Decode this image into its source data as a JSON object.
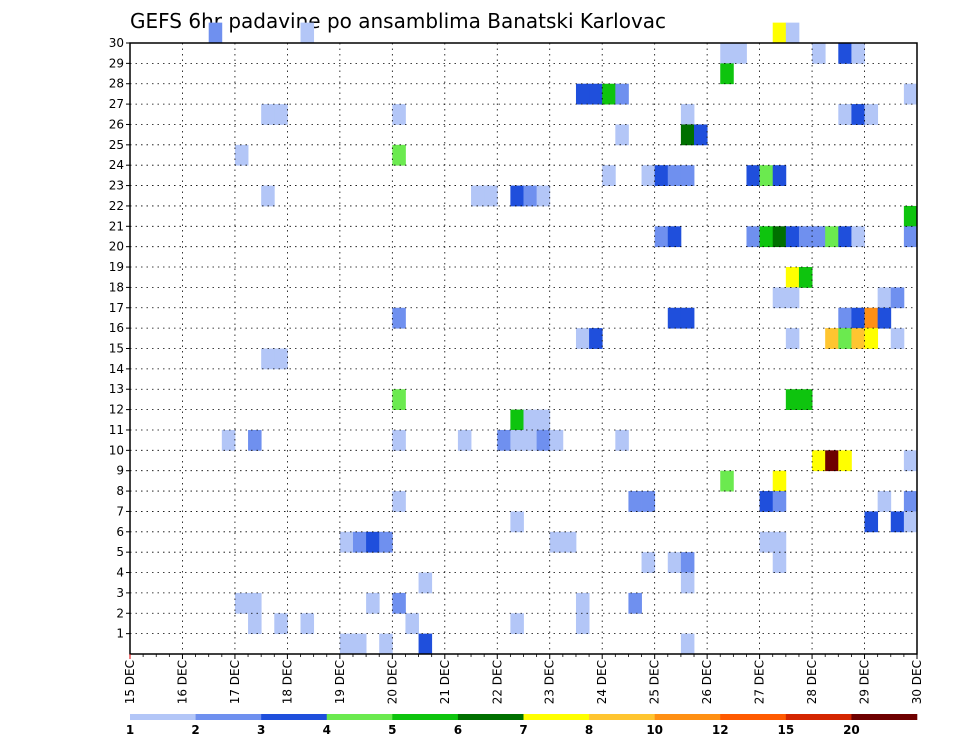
{
  "chart_data": {
    "type": "heatmap",
    "title": "GEFS 6hr padavine po ansamblima Banatski Karlovac",
    "x": {
      "unit": "6h",
      "range": [
        0,
        60
      ],
      "tick_labels": [
        "15 DEC",
        "16 DEC",
        "17 DEC",
        "18 DEC",
        "19 DEC",
        "20 DEC",
        "21 DEC",
        "22 DEC",
        "23 DEC",
        "24 DEC",
        "25 DEC",
        "26 DEC",
        "27 DEC",
        "28 DEC",
        "29 DEC",
        "30 DEC"
      ]
    },
    "y": {
      "range": [
        0,
        30
      ],
      "tick_labels": [
        "1",
        "2",
        "3",
        "4",
        "5",
        "6",
        "7",
        "8",
        "9",
        "10",
        "11",
        "12",
        "13",
        "14",
        "15",
        "16",
        "17",
        "18",
        "19",
        "20",
        "21",
        "22",
        "23",
        "24",
        "25",
        "26",
        "27",
        "28",
        "29",
        "30"
      ]
    },
    "grid": true,
    "colorbar": {
      "placement": "bottom",
      "labels": [
        "1",
        "2",
        "3",
        "4",
        "5",
        "6",
        "7",
        "8",
        "10",
        "12",
        "15",
        "20"
      ],
      "colors": [
        "#b3c6f7",
        "#6f90ef",
        "#1f4fdc",
        "#6bea4f",
        "#0ec40e",
        "#007000",
        "#ffff00",
        "#ffc530",
        "#ff9014",
        "#ff5a00",
        "#d42600",
        "#6e0000"
      ]
    },
    "cells": [
      [
        30,
        6,
        1
      ],
      [
        30,
        13,
        0
      ],
      [
        30,
        49,
        6
      ],
      [
        30,
        50,
        0
      ],
      [
        29,
        45,
        0
      ],
      [
        29,
        46,
        0
      ],
      [
        29,
        52,
        0
      ],
      [
        29,
        54,
        2
      ],
      [
        29,
        55,
        0
      ],
      [
        28,
        45,
        4
      ],
      [
        27,
        34,
        2
      ],
      [
        27,
        35,
        2
      ],
      [
        27,
        36,
        4
      ],
      [
        27,
        37,
        1
      ],
      [
        27,
        59,
        0
      ],
      [
        26,
        10,
        0
      ],
      [
        26,
        11,
        0
      ],
      [
        26,
        20,
        0
      ],
      [
        26,
        42,
        0
      ],
      [
        26,
        54,
        0
      ],
      [
        26,
        55,
        2
      ],
      [
        26,
        56,
        0
      ],
      [
        25,
        37,
        0
      ],
      [
        25,
        42,
        5
      ],
      [
        25,
        43,
        2
      ],
      [
        24,
        8,
        0
      ],
      [
        24,
        20,
        3
      ],
      [
        23,
        36,
        0
      ],
      [
        23,
        39,
        0
      ],
      [
        23,
        40,
        2
      ],
      [
        23,
        41,
        1
      ],
      [
        23,
        42,
        1
      ],
      [
        23,
        47,
        2
      ],
      [
        23,
        48,
        3
      ],
      [
        23,
        49,
        2
      ],
      [
        22,
        10,
        0
      ],
      [
        22,
        26,
        0
      ],
      [
        22,
        27,
        0
      ],
      [
        22,
        29,
        2
      ],
      [
        22,
        30,
        1
      ],
      [
        22,
        31,
        0
      ],
      [
        21,
        59,
        4
      ],
      [
        20,
        40,
        1
      ],
      [
        20,
        41,
        2
      ],
      [
        20,
        47,
        1
      ],
      [
        20,
        48,
        4
      ],
      [
        20,
        49,
        5
      ],
      [
        20,
        50,
        2
      ],
      [
        20,
        51,
        1
      ],
      [
        20,
        52,
        1
      ],
      [
        20,
        53,
        3
      ],
      [
        20,
        54,
        2
      ],
      [
        20,
        55,
        0
      ],
      [
        20,
        59,
        1
      ],
      [
        18,
        50,
        6
      ],
      [
        18,
        51,
        4
      ],
      [
        17,
        49,
        0
      ],
      [
        17,
        50,
        0
      ],
      [
        17,
        57,
        0
      ],
      [
        17,
        58,
        1
      ],
      [
        16,
        20,
        1
      ],
      [
        16,
        41,
        2
      ],
      [
        16,
        42,
        2
      ],
      [
        16,
        54,
        1
      ],
      [
        16,
        55,
        2
      ],
      [
        16,
        56,
        8
      ],
      [
        16,
        57,
        2
      ],
      [
        15,
        34,
        0
      ],
      [
        15,
        35,
        2
      ],
      [
        15,
        50,
        0
      ],
      [
        15,
        53,
        7
      ],
      [
        15,
        54,
        3
      ],
      [
        15,
        55,
        7
      ],
      [
        15,
        56,
        6
      ],
      [
        15,
        58,
        0
      ],
      [
        14,
        10,
        0
      ],
      [
        14,
        11,
        0
      ],
      [
        12,
        20,
        3
      ],
      [
        12,
        50,
        4
      ],
      [
        12,
        51,
        4
      ],
      [
        11,
        29,
        4
      ],
      [
        11,
        30,
        0
      ],
      [
        11,
        31,
        0
      ],
      [
        10,
        7,
        0
      ],
      [
        10,
        9,
        1
      ],
      [
        10,
        20,
        0
      ],
      [
        10,
        25,
        0
      ],
      [
        10,
        28,
        1
      ],
      [
        10,
        29,
        0
      ],
      [
        10,
        30,
        0
      ],
      [
        10,
        31,
        1
      ],
      [
        10,
        32,
        0
      ],
      [
        10,
        37,
        0
      ],
      [
        9,
        52,
        6
      ],
      [
        9,
        53,
        11
      ],
      [
        9,
        54,
        6
      ],
      [
        9,
        59,
        0
      ],
      [
        8,
        45,
        3
      ],
      [
        8,
        49,
        6
      ],
      [
        7,
        20,
        0
      ],
      [
        7,
        38,
        1
      ],
      [
        7,
        39,
        1
      ],
      [
        7,
        48,
        2
      ],
      [
        7,
        49,
        1
      ],
      [
        7,
        57,
        0
      ],
      [
        7,
        59,
        1
      ],
      [
        6,
        29,
        0
      ],
      [
        6,
        56,
        2
      ],
      [
        6,
        58,
        2
      ],
      [
        6,
        59,
        0
      ],
      [
        5,
        16,
        0
      ],
      [
        5,
        17,
        1
      ],
      [
        5,
        18,
        2
      ],
      [
        5,
        19,
        1
      ],
      [
        5,
        32,
        0
      ],
      [
        5,
        33,
        0
      ],
      [
        5,
        48,
        0
      ],
      [
        5,
        49,
        0
      ],
      [
        4,
        39,
        0
      ],
      [
        4,
        41,
        0
      ],
      [
        4,
        42,
        1
      ],
      [
        4,
        49,
        0
      ],
      [
        3,
        22,
        0
      ],
      [
        3,
        42,
        0
      ],
      [
        2,
        8,
        0
      ],
      [
        2,
        9,
        0
      ],
      [
        2,
        18,
        0
      ],
      [
        2,
        20,
        1
      ],
      [
        2,
        38,
        1
      ],
      [
        2,
        34,
        0
      ],
      [
        1,
        9,
        0
      ],
      [
        1,
        11,
        0
      ],
      [
        1,
        13,
        0
      ],
      [
        1,
        21,
        0
      ],
      [
        1,
        29,
        0
      ],
      [
        1,
        34,
        0
      ],
      [
        0,
        16,
        0
      ],
      [
        0,
        17,
        0
      ],
      [
        0,
        19,
        0
      ],
      [
        0,
        22,
        2
      ],
      [
        0,
        42,
        0
      ]
    ]
  }
}
